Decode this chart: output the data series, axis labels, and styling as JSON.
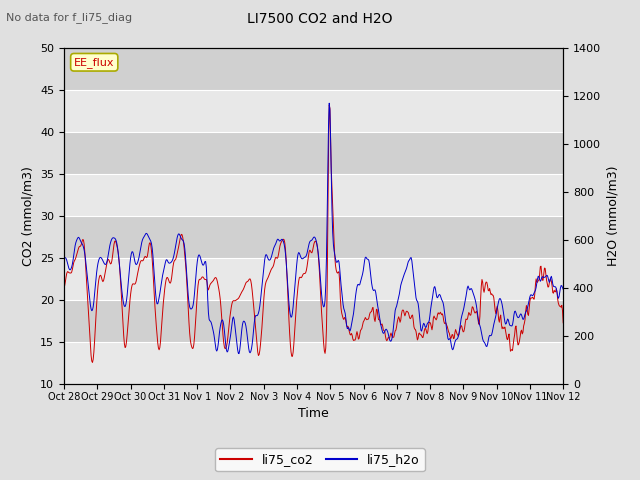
{
  "title": "LI7500 CO2 and H2O",
  "subtitle": "No data for f_li75_diag",
  "xlabel": "Time",
  "ylabel_left": "CO2 (mmol/m3)",
  "ylabel_right": "H2O (mmol/m3)",
  "ylim_left": [
    10,
    50
  ],
  "ylim_right": [
    0,
    1400
  ],
  "legend_label1": "li75_co2",
  "legend_label2": "li75_h2o",
  "legend_color1": "#cc0000",
  "legend_color2": "#0000cc",
  "annotation_box": "EE_flux",
  "annotation_box_facecolor": "#ffffcc",
  "annotation_box_edgecolor": "#aaaa00",
  "background_color": "#e0e0e0",
  "plot_bg_color": "#d8d8d8",
  "xtick_labels": [
    "Oct 28",
    "Oct 29",
    "Oct 30",
    "Oct 31",
    "Nov 1",
    "Nov 2",
    "Nov 3",
    "Nov 4",
    "Nov 5",
    "Nov 6",
    "Nov 7",
    "Nov 8",
    "Nov 9",
    "Nov 10",
    "Nov 11",
    "Nov 12"
  ],
  "yticks_left": [
    10,
    15,
    20,
    25,
    30,
    35,
    40,
    45,
    50
  ],
  "yticks_right": [
    0,
    200,
    400,
    600,
    800,
    1000,
    1200,
    1400
  ]
}
